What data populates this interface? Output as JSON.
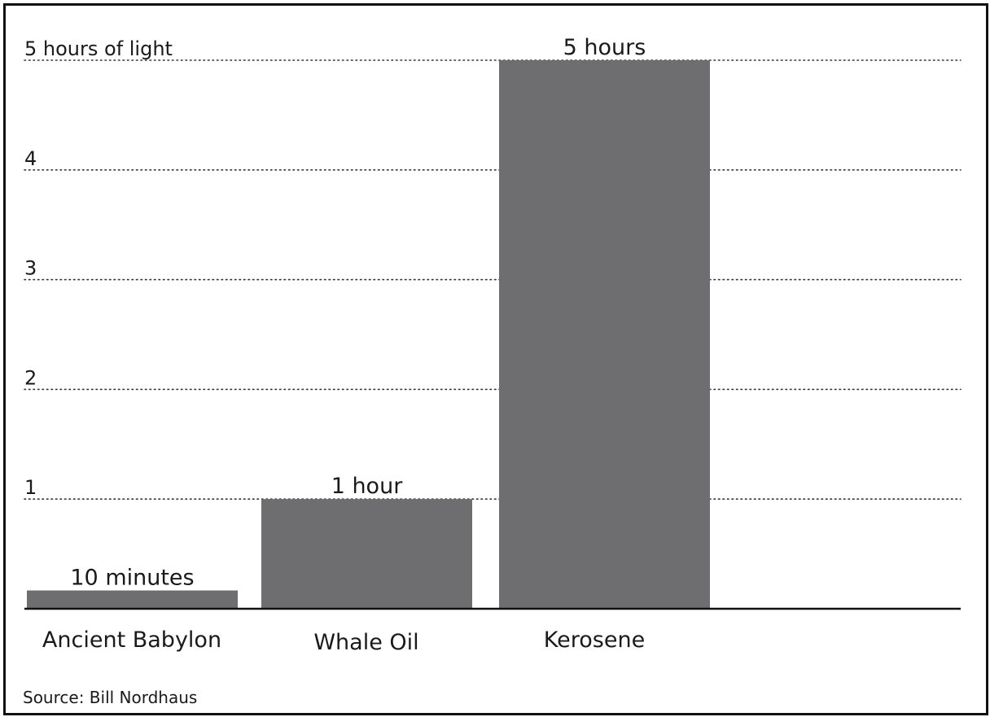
{
  "chart_data": {
    "type": "bar",
    "categories": [
      "Ancient Babylon",
      "Whale Oil",
      "Kerosene"
    ],
    "values": [
      0.1667,
      1,
      5
    ],
    "value_labels": [
      "10 minutes",
      "1 hour",
      "5 hours"
    ],
    "y_tick_labels": [
      "1",
      "2",
      "3",
      "4",
      "5 hours of light"
    ],
    "y_ticks": [
      1,
      2,
      3,
      4,
      5
    ],
    "ylim": [
      0,
      5
    ],
    "source": "Source: Bill Nordhaus",
    "bar_color": "#6e6e70",
    "grid": "dotted horizontal",
    "legend": "none"
  }
}
